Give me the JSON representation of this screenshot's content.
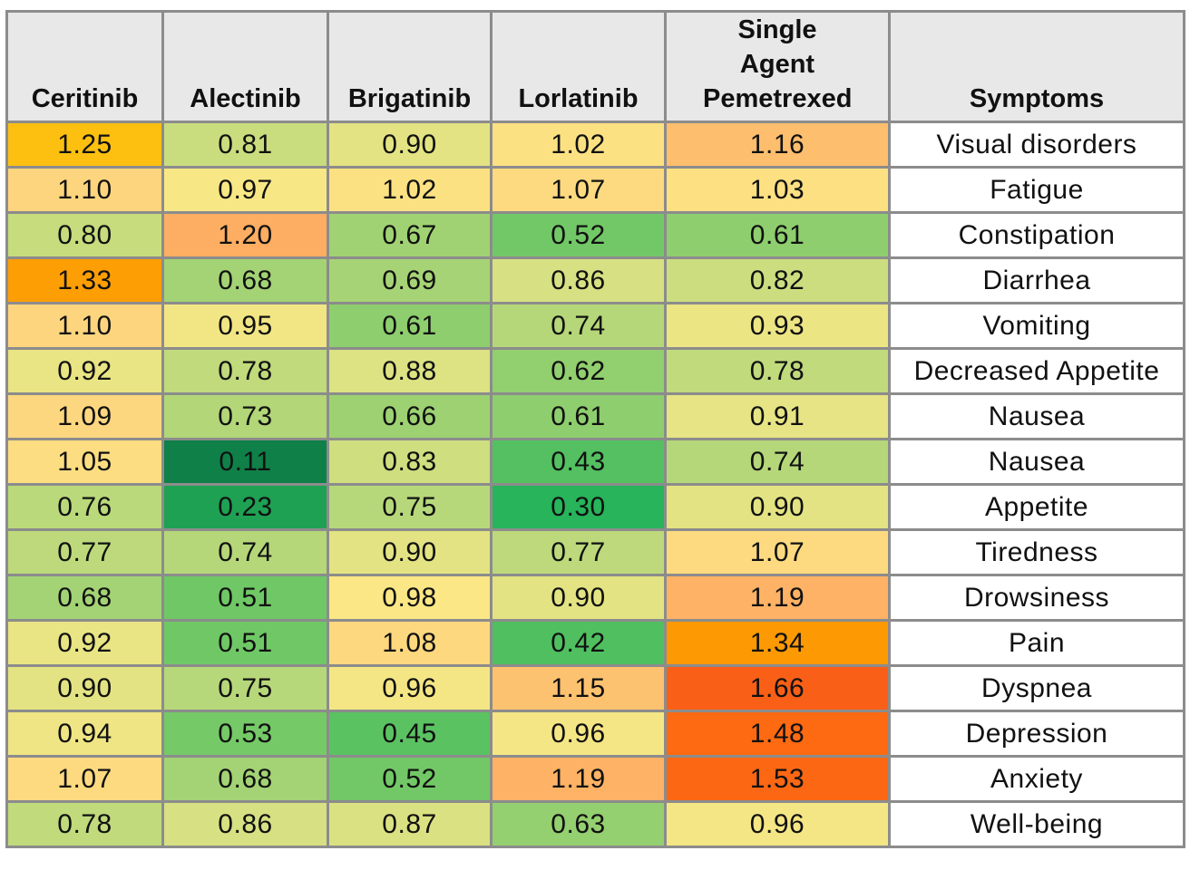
{
  "chart_data": {
    "type": "heatmap",
    "columns": [
      "Ceritinib",
      "Alectinib",
      "Brigatinib",
      "Lorlatinib",
      "Single Agent Pemetrexed",
      "Symptoms"
    ],
    "rows": [
      {
        "values": [
          1.25,
          0.81,
          0.9,
          1.02,
          1.16
        ],
        "symptom": "Visual disorders"
      },
      {
        "values": [
          1.1,
          0.97,
          1.02,
          1.07,
          1.03
        ],
        "symptom": "Fatigue"
      },
      {
        "values": [
          0.8,
          1.2,
          0.67,
          0.52,
          0.61
        ],
        "symptom": "Constipation"
      },
      {
        "values": [
          1.33,
          0.68,
          0.69,
          0.86,
          0.82
        ],
        "symptom": "Diarrhea"
      },
      {
        "values": [
          1.1,
          0.95,
          0.61,
          0.74,
          0.93
        ],
        "symptom": "Vomiting"
      },
      {
        "values": [
          0.92,
          0.78,
          0.88,
          0.62,
          0.78
        ],
        "symptom": "Decreased Appetite"
      },
      {
        "values": [
          1.09,
          0.73,
          0.66,
          0.61,
          0.91
        ],
        "symptom": "Nausea"
      },
      {
        "values": [
          1.05,
          0.11,
          0.83,
          0.43,
          0.74
        ],
        "symptom": "Nausea"
      },
      {
        "values": [
          0.76,
          0.23,
          0.75,
          0.3,
          0.9
        ],
        "symptom": "Appetite"
      },
      {
        "values": [
          0.77,
          0.74,
          0.9,
          0.77,
          1.07
        ],
        "symptom": "Tiredness"
      },
      {
        "values": [
          0.68,
          0.51,
          0.98,
          0.9,
          1.19
        ],
        "symptom": "Drowsiness"
      },
      {
        "values": [
          0.92,
          0.51,
          1.08,
          0.42,
          1.34
        ],
        "symptom": "Pain"
      },
      {
        "values": [
          0.9,
          0.75,
          0.96,
          1.15,
          1.66
        ],
        "symptom": "Dyspnea"
      },
      {
        "values": [
          0.94,
          0.53,
          0.45,
          0.96,
          1.48
        ],
        "symptom": "Depression"
      },
      {
        "values": [
          1.07,
          0.68,
          0.52,
          1.19,
          1.53
        ],
        "symptom": "Anxiety"
      },
      {
        "values": [
          0.78,
          0.86,
          0.87,
          0.63,
          0.96
        ],
        "symptom": "Well-being"
      }
    ],
    "color_scale": {
      "stops": [
        {
          "value": 0.11,
          "color": "#0f8048"
        },
        {
          "value": 0.3,
          "color": "#27b45a"
        },
        {
          "value": 0.5,
          "color": "#6cc764"
        },
        {
          "value": 0.7,
          "color": "#a9d476"
        },
        {
          "value": 0.88,
          "color": "#dde283"
        },
        {
          "value": 0.98,
          "color": "#fbe785"
        },
        {
          "value": 1.1,
          "color": "#fdd57e"
        },
        {
          "value": 1.2,
          "color": "#fdae62"
        },
        {
          "value": 1.25,
          "color": "#fdc010"
        },
        {
          "value": 1.34,
          "color": "#fd9a03"
        },
        {
          "value": 1.48,
          "color": "#fd6a12"
        },
        {
          "value": 1.66,
          "color": "#f95f17"
        }
      ]
    }
  }
}
